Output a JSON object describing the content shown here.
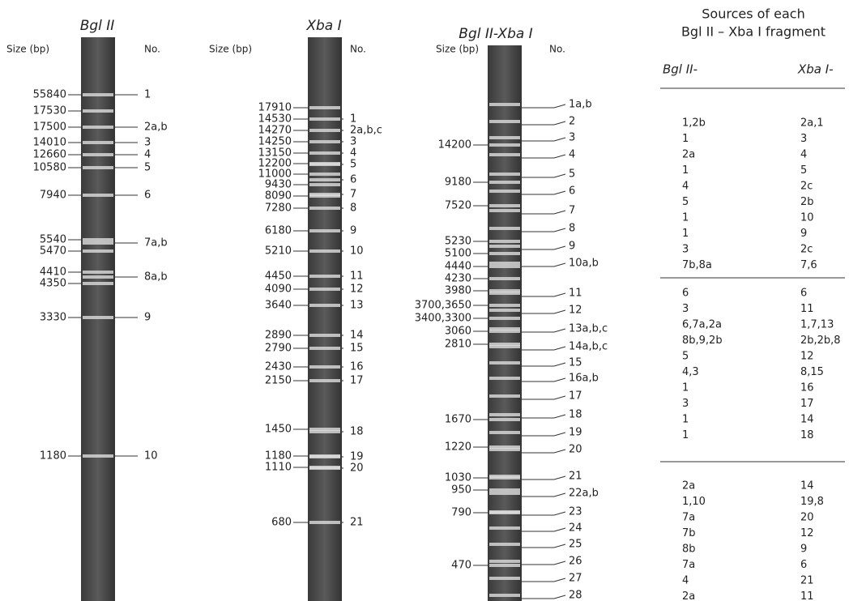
{
  "lanes": [
    {
      "title": "Bgl II",
      "size_header": "Size (bp)",
      "no_header": "No.",
      "sizes": [
        "55840",
        "17530",
        "17500",
        "14010",
        "12660",
        "10580",
        "7940",
        "5540",
        "5470",
        "4410",
        "4350",
        "3330",
        "1180"
      ],
      "numbers": [
        "1",
        "2a,b",
        "3",
        "4",
        "5",
        "6",
        "7a,b",
        "8a,b",
        "9",
        "10"
      ]
    },
    {
      "title": "Xba I",
      "size_header": "Size (bp)",
      "no_header": "No.",
      "sizes": [
        "17910",
        "14530",
        "14270",
        "14250",
        "13150",
        "12200",
        "11000",
        "9430",
        "8090",
        "7280",
        "6180",
        "5210",
        "4450",
        "4090",
        "3640",
        "2890",
        "2790",
        "2430",
        "2150",
        "1450",
        "1180",
        "1110",
        "680"
      ],
      "numbers": [
        "1",
        "2a,b,c",
        "3",
        "4",
        "5",
        "6",
        "7",
        "8",
        "9",
        "10",
        "11",
        "12",
        "13",
        "14",
        "15",
        "16",
        "17",
        "18",
        "19",
        "20",
        "21"
      ]
    },
    {
      "title": "Bgl II-Xba I",
      "size_header": "Size (bp)",
      "no_header": "No.",
      "sizes": [
        "14200",
        "9180",
        "7520",
        "5230",
        "5100",
        "4440",
        "4230",
        "3980",
        "3700,3650",
        "3400,3300",
        "3060",
        "2810",
        "1670",
        "1220",
        "1030",
        "950",
        "790",
        "470"
      ],
      "numbers": [
        "1a,b",
        "2",
        "3",
        "4",
        "5",
        "6",
        "7",
        "8",
        "9",
        "10a,b",
        "11",
        "12",
        "13a,b,c",
        "14a,b,c",
        "15",
        "16a,b",
        "17",
        "18",
        "19",
        "20",
        "21",
        "22a,b",
        "23",
        "24",
        "25",
        "26",
        "27",
        "28"
      ]
    }
  ],
  "table": {
    "title": [
      "Sources of each",
      "Bgl II – Xba I  fragment"
    ],
    "headers": [
      "Bgl II-",
      "Xba I-"
    ],
    "groups": [
      [
        [
          "1,2b",
          "2a,1"
        ],
        [
          "1",
          "3"
        ],
        [
          "2a",
          "4"
        ],
        [
          "1",
          "5"
        ],
        [
          "4",
          "2c"
        ],
        [
          "5",
          "2b"
        ],
        [
          "1",
          "10"
        ],
        [
          "1",
          "9"
        ],
        [
          "3",
          "2c"
        ],
        [
          "7b,8a",
          "7,6"
        ]
      ],
      [
        [
          "6",
          "6"
        ],
        [
          "3",
          "11"
        ],
        [
          "6,7a,2a",
          "1,7,13"
        ],
        [
          "8b,9,2b",
          "2b,2b,8"
        ],
        [
          "5",
          "12"
        ],
        [
          "4,3",
          "8,15"
        ],
        [
          "1",
          "16"
        ],
        [
          "3",
          "17"
        ],
        [
          "1",
          "14"
        ],
        [
          "1",
          "18"
        ]
      ],
      [
        [
          "2a",
          "14"
        ],
        [
          "1,10",
          "19,8"
        ],
        [
          "7a",
          "20"
        ],
        [
          "7b",
          "12"
        ],
        [
          "8b",
          "9"
        ],
        [
          "7a",
          "6"
        ],
        [
          "4",
          "21"
        ],
        [
          "2a",
          "11"
        ]
      ]
    ]
  }
}
